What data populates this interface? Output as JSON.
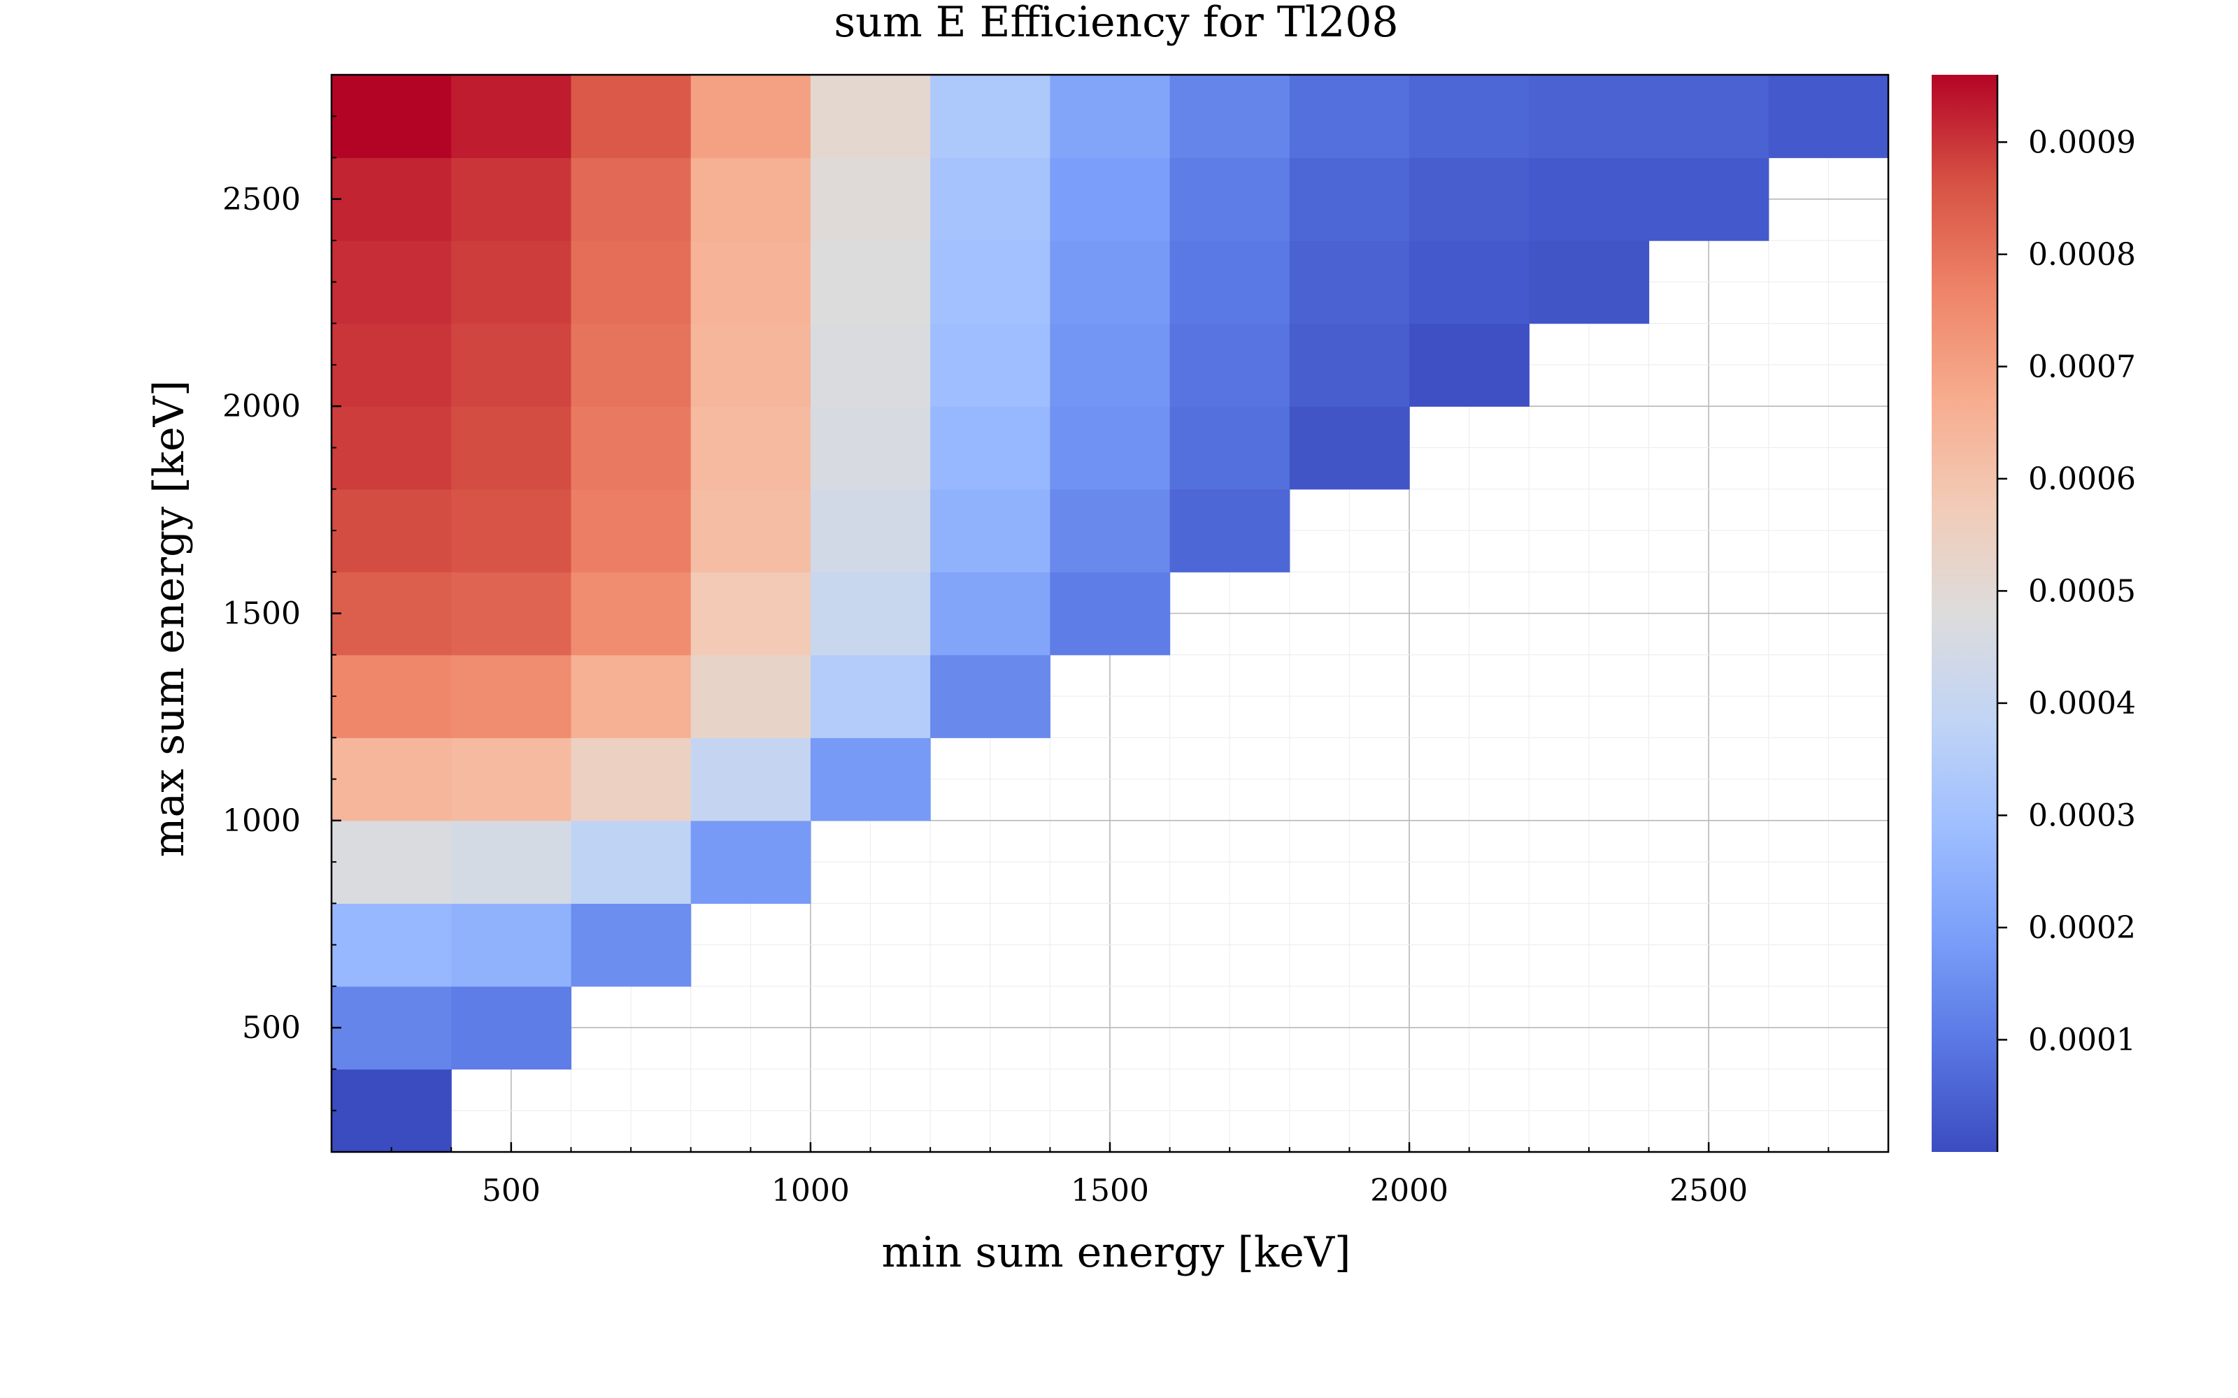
{
  "chart_data": {
    "type": "heatmap",
    "title": "sum E Efficiency for Tl208",
    "xlabel": "min sum energy [keV]",
    "ylabel": "max sum energy [keV]",
    "xlim": [
      200,
      2800
    ],
    "ylim": [
      200,
      2800
    ],
    "bin_width": 200,
    "x_bins": [
      300,
      500,
      700,
      900,
      1100,
      1300,
      1500,
      1700,
      1900,
      2100,
      2300,
      2500,
      2700
    ],
    "y_bins": [
      300,
      500,
      700,
      900,
      1100,
      1300,
      1500,
      1700,
      1900,
      2100,
      2300,
      2500,
      2700
    ],
    "x_ticks": [
      500,
      1000,
      1500,
      2000,
      2500
    ],
    "y_ticks": [
      500,
      1000,
      1500,
      2000,
      2500
    ],
    "x_tick_labels": [
      "500",
      "1000",
      "1500",
      "2000",
      "2500"
    ],
    "y_tick_labels": [
      "500",
      "1000",
      "1500",
      "2000",
      "2500"
    ],
    "grid": true,
    "colormap": "coolwarm",
    "colorbar": {
      "range": [
        0.0,
        0.00096
      ],
      "ticks": [
        0.0001,
        0.0002,
        0.0003,
        0.0004,
        0.0005,
        0.0006,
        0.0007,
        0.0008,
        0.0009
      ],
      "tick_labels": [
        "0.0001",
        "0.0002",
        "0.0003",
        "0.0004",
        "0.0005",
        "0.0006",
        "0.0007",
        "0.0008",
        "0.0009"
      ],
      "colors": [
        "#3b4cc0",
        "#5977e3",
        "#7b9ff9",
        "#9ebeff",
        "#c0d4f5",
        "#dddcdc",
        "#f2cbb7",
        "#f7ac8e",
        "#ee8468",
        "#d65244",
        "#b40426"
      ]
    },
    "values": [
      [
        0.0,
        null,
        null,
        null,
        null,
        null,
        null,
        null,
        null,
        null,
        null,
        null,
        null
      ],
      [
        0.00013,
        0.00011,
        null,
        null,
        null,
        null,
        null,
        null,
        null,
        null,
        null,
        null,
        null
      ],
      [
        0.00027,
        0.00025,
        0.00015,
        null,
        null,
        null,
        null,
        null,
        null,
        null,
        null,
        null,
        null
      ],
      [
        0.00047,
        0.00045,
        0.00038,
        0.00018,
        null,
        null,
        null,
        null,
        null,
        null,
        null,
        null,
        null
      ],
      [
        0.00064,
        0.00063,
        0.00055,
        0.0004,
        0.00018,
        null,
        null,
        null,
        null,
        null,
        null,
        null,
        null
      ],
      [
        0.00076,
        0.00075,
        0.00066,
        0.00053,
        0.00035,
        0.00014,
        null,
        null,
        null,
        null,
        null,
        null,
        null
      ],
      [
        0.00084,
        0.00083,
        0.00075,
        0.00058,
        0.00041,
        0.00021,
        0.00011,
        null,
        null,
        null,
        null,
        null,
        null
      ],
      [
        0.00087,
        0.00086,
        0.00078,
        0.00062,
        0.00044,
        0.00025,
        0.00014,
        6e-05,
        null,
        null,
        null,
        null,
        null
      ],
      [
        0.00089,
        0.00087,
        0.00079,
        0.00063,
        0.00046,
        0.00027,
        0.00016,
        8e-05,
        2e-05,
        null,
        null,
        null,
        null
      ],
      [
        0.0009,
        0.00088,
        0.0008,
        0.00064,
        0.00047,
        0.00029,
        0.00017,
        9e-05,
        4e-05,
        1e-05,
        null,
        null,
        null
      ],
      [
        0.00091,
        0.00089,
        0.00081,
        0.00065,
        0.00048,
        0.0003,
        0.00018,
        0.0001,
        5e-05,
        3e-05,
        2e-05,
        null,
        null
      ],
      [
        0.00092,
        0.0009,
        0.00082,
        0.00066,
        0.00049,
        0.00031,
        0.00019,
        0.00011,
        6e-05,
        4e-05,
        3e-05,
        3e-05,
        null
      ],
      [
        0.00096,
        0.00093,
        0.00085,
        0.0007,
        0.00051,
        0.00033,
        0.00021,
        0.00013,
        8e-05,
        6e-05,
        5e-05,
        5e-05,
        3e-05
      ]
    ]
  }
}
